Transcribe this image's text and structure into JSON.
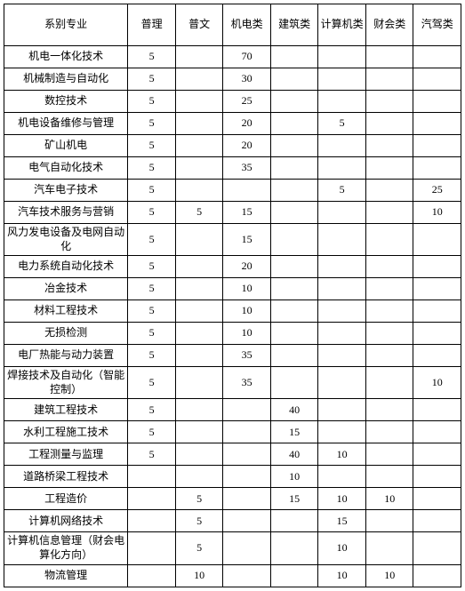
{
  "columns": [
    "系别专业",
    "普理",
    "普文",
    "机电类",
    "建筑类",
    "计算机类",
    "财会类",
    "汽驾类"
  ],
  "rows": [
    {
      "major": "机电一体化技术",
      "c1": "5",
      "c2": "",
      "c3": "70",
      "c4": "",
      "c5": "",
      "c6": "",
      "c7": ""
    },
    {
      "major": "机械制造与自动化",
      "c1": "5",
      "c2": "",
      "c3": "30",
      "c4": "",
      "c5": "",
      "c6": "",
      "c7": ""
    },
    {
      "major": "数控技术",
      "c1": "5",
      "c2": "",
      "c3": "25",
      "c4": "",
      "c5": "",
      "c6": "",
      "c7": ""
    },
    {
      "major": "机电设备维修与管理",
      "c1": "5",
      "c2": "",
      "c3": "20",
      "c4": "",
      "c5": "5",
      "c6": "",
      "c7": ""
    },
    {
      "major": "矿山机电",
      "c1": "5",
      "c2": "",
      "c3": "20",
      "c4": "",
      "c5": "",
      "c6": "",
      "c7": ""
    },
    {
      "major": "电气自动化技术",
      "c1": "5",
      "c2": "",
      "c3": "35",
      "c4": "",
      "c5": "",
      "c6": "",
      "c7": ""
    },
    {
      "major": "汽车电子技术",
      "c1": "5",
      "c2": "",
      "c3": "",
      "c4": "",
      "c5": "5",
      "c6": "",
      "c7": "25"
    },
    {
      "major": "汽车技术服务与营销",
      "c1": "5",
      "c2": "5",
      "c3": "15",
      "c4": "",
      "c5": "",
      "c6": "",
      "c7": "10"
    },
    {
      "major": "风力发电设备及电网自动化",
      "c1": "5",
      "c2": "",
      "c3": "15",
      "c4": "",
      "c5": "",
      "c6": "",
      "c7": "",
      "tall": true
    },
    {
      "major": "电力系统自动化技术",
      "c1": "5",
      "c2": "",
      "c3": "20",
      "c4": "",
      "c5": "",
      "c6": "",
      "c7": ""
    },
    {
      "major": "冶金技术",
      "c1": "5",
      "c2": "",
      "c3": "10",
      "c4": "",
      "c5": "",
      "c6": "",
      "c7": ""
    },
    {
      "major": "材料工程技术",
      "c1": "5",
      "c2": "",
      "c3": "10",
      "c4": "",
      "c5": "",
      "c6": "",
      "c7": ""
    },
    {
      "major": "无损检测",
      "c1": "5",
      "c2": "",
      "c3": "10",
      "c4": "",
      "c5": "",
      "c6": "",
      "c7": ""
    },
    {
      "major": "电厂热能与动力装置",
      "c1": "5",
      "c2": "",
      "c3": "35",
      "c4": "",
      "c5": "",
      "c6": "",
      "c7": ""
    },
    {
      "major": "焊接技术及自动化（智能控制）",
      "c1": "5",
      "c2": "",
      "c3": "35",
      "c4": "",
      "c5": "",
      "c6": "",
      "c7": "10",
      "tall": true
    },
    {
      "major": "建筑工程技术",
      "c1": "5",
      "c2": "",
      "c3": "",
      "c4": "40",
      "c5": "",
      "c6": "",
      "c7": ""
    },
    {
      "major": "水利工程施工技术",
      "c1": "5",
      "c2": "",
      "c3": "",
      "c4": "15",
      "c5": "",
      "c6": "",
      "c7": ""
    },
    {
      "major": "工程测量与监理",
      "c1": "5",
      "c2": "",
      "c3": "",
      "c4": "40",
      "c5": "10",
      "c6": "",
      "c7": ""
    },
    {
      "major": "道路桥梁工程技术",
      "c1": "",
      "c2": "",
      "c3": "",
      "c4": "10",
      "c5": "",
      "c6": "",
      "c7": ""
    },
    {
      "major": "工程造价",
      "c1": "",
      "c2": "5",
      "c3": "",
      "c4": "15",
      "c5": "10",
      "c6": "10",
      "c7": ""
    },
    {
      "major": "计算机网络技术",
      "c1": "",
      "c2": "5",
      "c3": "",
      "c4": "",
      "c5": "15",
      "c6": "",
      "c7": ""
    },
    {
      "major": "计算机信息管理（财会电算化方向）",
      "c1": "",
      "c2": "5",
      "c3": "",
      "c4": "",
      "c5": "10",
      "c6": "",
      "c7": "",
      "tall": true
    },
    {
      "major": "物流管理",
      "c1": "",
      "c2": "10",
      "c3": "",
      "c4": "",
      "c5": "10",
      "c6": "10",
      "c7": ""
    }
  ]
}
